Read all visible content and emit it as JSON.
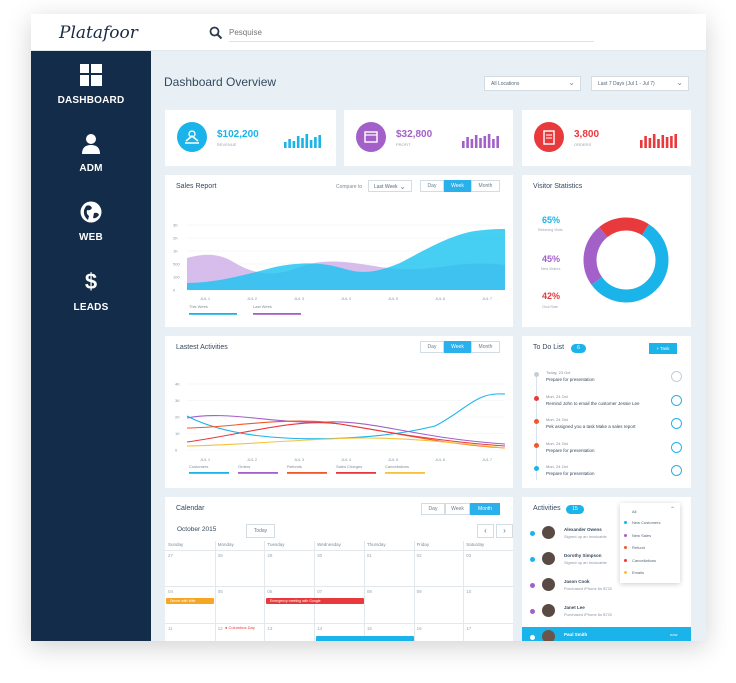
{
  "app": {
    "logo": "Platafoor"
  },
  "search": {
    "placeholder": "Pesquise"
  },
  "sidebar": {
    "items": [
      {
        "label": "DASHBOARD",
        "icon": "dashboard-grid-icon"
      },
      {
        "label": "ADM",
        "icon": "user-icon"
      },
      {
        "label": "WEB",
        "icon": "globe-icon"
      },
      {
        "label": "LEADS",
        "icon": "dollar-icon"
      }
    ]
  },
  "header": {
    "title": "Dashboard Overview",
    "location_filter": "All Locations",
    "date_filter": "Last 7 Days (Jul 1 - Jul 7)"
  },
  "stats": [
    {
      "value": "$102,200",
      "label": "REVENUE",
      "color": "#1ab3ea"
    },
    {
      "value": "$32,800",
      "label": "PROFIT",
      "color": "#a360c9"
    },
    {
      "value": "3,800",
      "label": "ORDERS",
      "color": "#e8393c"
    }
  ],
  "sales": {
    "title": "Sales Report",
    "compare_label": "Compare to",
    "compare_value": "Last Week",
    "tabs": [
      "Day",
      "Week",
      "Month"
    ],
    "active_tab": 1,
    "y_ticks": [
      "3K",
      "2K",
      "1K",
      "500",
      "100",
      "0"
    ],
    "x_ticks": [
      "JUL 1",
      "JUL 2",
      "JUL 3",
      "JUL 4",
      "JUL 5",
      "JUL 6",
      "JUL 7"
    ],
    "legend": [
      {
        "name": "This Week",
        "color": "#1ab3ea"
      },
      {
        "name": "Last Week",
        "color": "#a360c9"
      }
    ]
  },
  "visitors": {
    "title": "Visitor Statistics",
    "items": [
      {
        "pct": "65%",
        "label": "Returning Visits",
        "color": "#1ab3ea",
        "value": 0.56
      },
      {
        "pct": "45%",
        "label": "New Visitors",
        "color": "#a360c9",
        "value": 0.24
      },
      {
        "pct": "42%",
        "label": "Click Rate",
        "color": "#e8393c",
        "value": 0.2
      }
    ]
  },
  "activities_chart": {
    "title": "Lastest Activities",
    "tabs": [
      "Day",
      "Week",
      "Month"
    ],
    "active_tab": 1,
    "y_ticks": [
      "4K",
      "3K",
      "2K",
      "1K",
      "0"
    ],
    "x_ticks": [
      "JUL 1",
      "JUL 2",
      "JUL 3",
      "JUL 4",
      "JUL 5",
      "JUL 6",
      "JUL 7"
    ],
    "legend": [
      {
        "name": "Customers",
        "color": "#1ab3ea"
      },
      {
        "name": "Orders",
        "color": "#a360c9"
      },
      {
        "name": "Refunds",
        "color": "#f2572a"
      },
      {
        "name": "Sales Charges",
        "color": "#e8393c"
      },
      {
        "name": "Cancellations",
        "color": "#f6c23e"
      }
    ]
  },
  "todo": {
    "title": "To Do List",
    "count": "6",
    "add_label": "+ Task",
    "items": [
      {
        "date": "Today, 23 Oct",
        "text": "Prepare for presentation",
        "color": "#c5ced6",
        "done": true
      },
      {
        "date": "Mon, 24 Oct",
        "text": "Remind John to email the customer Jessie Lee",
        "color": "#e8393c",
        "done": false
      },
      {
        "date": "Mon, 24 Oct",
        "text": "Pek assigned you a task Make a sales report",
        "color": "#f2572a",
        "done": false
      },
      {
        "date": "Mon, 24 Oct",
        "text": "Prepare for presentation",
        "color": "#f2572a",
        "done": false
      },
      {
        "date": "Mon, 24 Oct",
        "text": "Prepare for presentation",
        "color": "#1ab3ea",
        "done": false
      }
    ]
  },
  "calendar": {
    "title": "Calendar",
    "month": "October 2015",
    "today_label": "Today",
    "views": [
      "Day",
      "Week",
      "Month"
    ],
    "active_view": 2,
    "days": [
      "Sunday",
      "Monday",
      "Tuesday",
      "Wednesday",
      "Thursday",
      "Friday",
      "Saturday"
    ],
    "row1": [
      "27",
      "28",
      "29",
      "30",
      "01",
      "02",
      "03"
    ],
    "row2": [
      "04",
      "05",
      "06",
      "07",
      "08",
      "09",
      "10"
    ],
    "row3": [
      "11",
      "12",
      "13",
      "14",
      "15",
      "16",
      "17"
    ],
    "events": [
      {
        "text": "Dinner with Wife",
        "color": "#f6a623"
      },
      {
        "text": "Emergency meeting with Google",
        "color": "#e8393c"
      },
      {
        "text": "Columbus Day",
        "color": "#e8393c"
      },
      {
        "text": "",
        "color": "#1ab3ea"
      },
      {
        "text": "",
        "color": "#f6a623"
      }
    ]
  },
  "activities": {
    "title": "Activities",
    "count": "15",
    "filter": {
      "selected": "All",
      "options": [
        {
          "label": "New Customers",
          "color": "#1ab3ea"
        },
        {
          "label": "New Sales",
          "color": "#a360c9"
        },
        {
          "label": "Refund",
          "color": "#f2572a"
        },
        {
          "label": "Cancellations",
          "color": "#e8393c"
        },
        {
          "label": "Emails",
          "color": "#f6c23e"
        }
      ]
    },
    "items": [
      {
        "name": "Alexander Owens",
        "sub": "Signed up an Invoicable",
        "color": "#1ab3ea"
      },
      {
        "name": "Dorothy Simpson",
        "sub": "Signed up an Invoicable",
        "color": "#1ab3ea"
      },
      {
        "name": "Jason Cook",
        "sub": "Purchased iPhone 6s $720",
        "color": "#a360c9"
      },
      {
        "name": "Janet Lee",
        "sub": "Purchased iPhone 6s $720",
        "color": "#a360c9"
      },
      {
        "name": "Paul Smith",
        "sub": "",
        "color": "#ffffff",
        "badge": "now"
      }
    ]
  }
}
